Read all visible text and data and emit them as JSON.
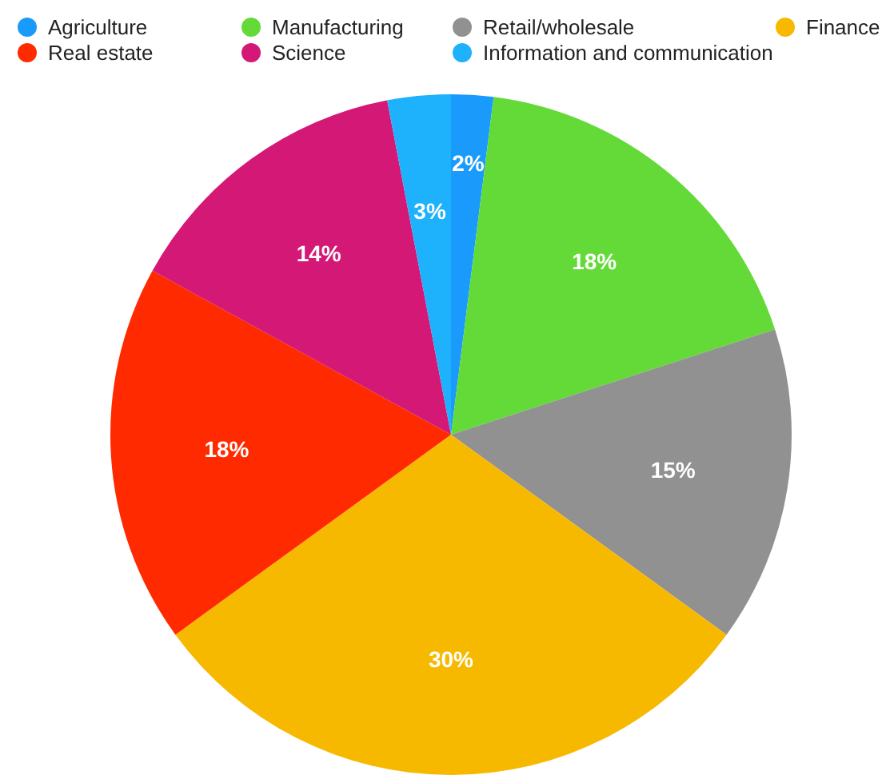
{
  "chart_data": {
    "type": "pie",
    "categories": [
      "Agriculture",
      "Manufacturing",
      "Retail/wholesale",
      "Finance",
      "Real estate",
      "Science",
      "Information and communication"
    ],
    "values": [
      2,
      18,
      15,
      30,
      18,
      14,
      3
    ],
    "colors": [
      "#1a9bfc",
      "#63da38",
      "#919191",
      "#f7b900",
      "#ff2a00",
      "#d31876",
      "#1eb1fc"
    ],
    "value_labels": [
      "2%",
      "18%",
      "15%",
      "30%",
      "18%",
      "14%",
      "3%"
    ],
    "legend": "top"
  }
}
